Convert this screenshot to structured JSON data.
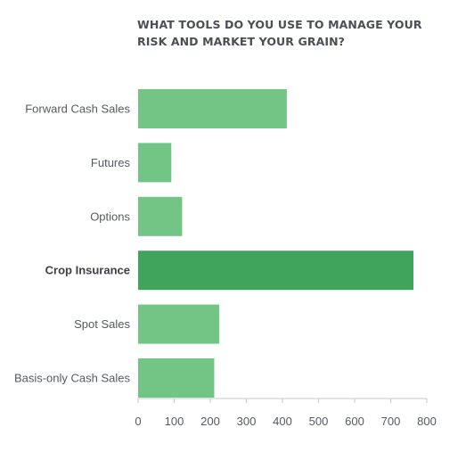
{
  "chart_data": {
    "type": "bar",
    "orientation": "horizontal",
    "title": "WHAT TOOLS DO YOU USE TO MANAGE YOUR RISK AND MARKET YOUR GRAIN?",
    "categories": [
      "Forward Cash Sales",
      "Futures",
      "Options",
      "Crop Insurance",
      "Spot Sales",
      "Basis-only Cash Sales"
    ],
    "values": [
      412,
      92,
      122,
      763,
      225,
      211
    ],
    "highlight": "Crop Insurance",
    "xlim": [
      0,
      800
    ],
    "xticks": [
      0,
      100,
      200,
      300,
      400,
      500,
      600,
      700,
      800
    ],
    "grid": false,
    "legend": "none",
    "colors": {
      "bar": "#72c584",
      "highlight_bar": "#41a45d"
    }
  }
}
